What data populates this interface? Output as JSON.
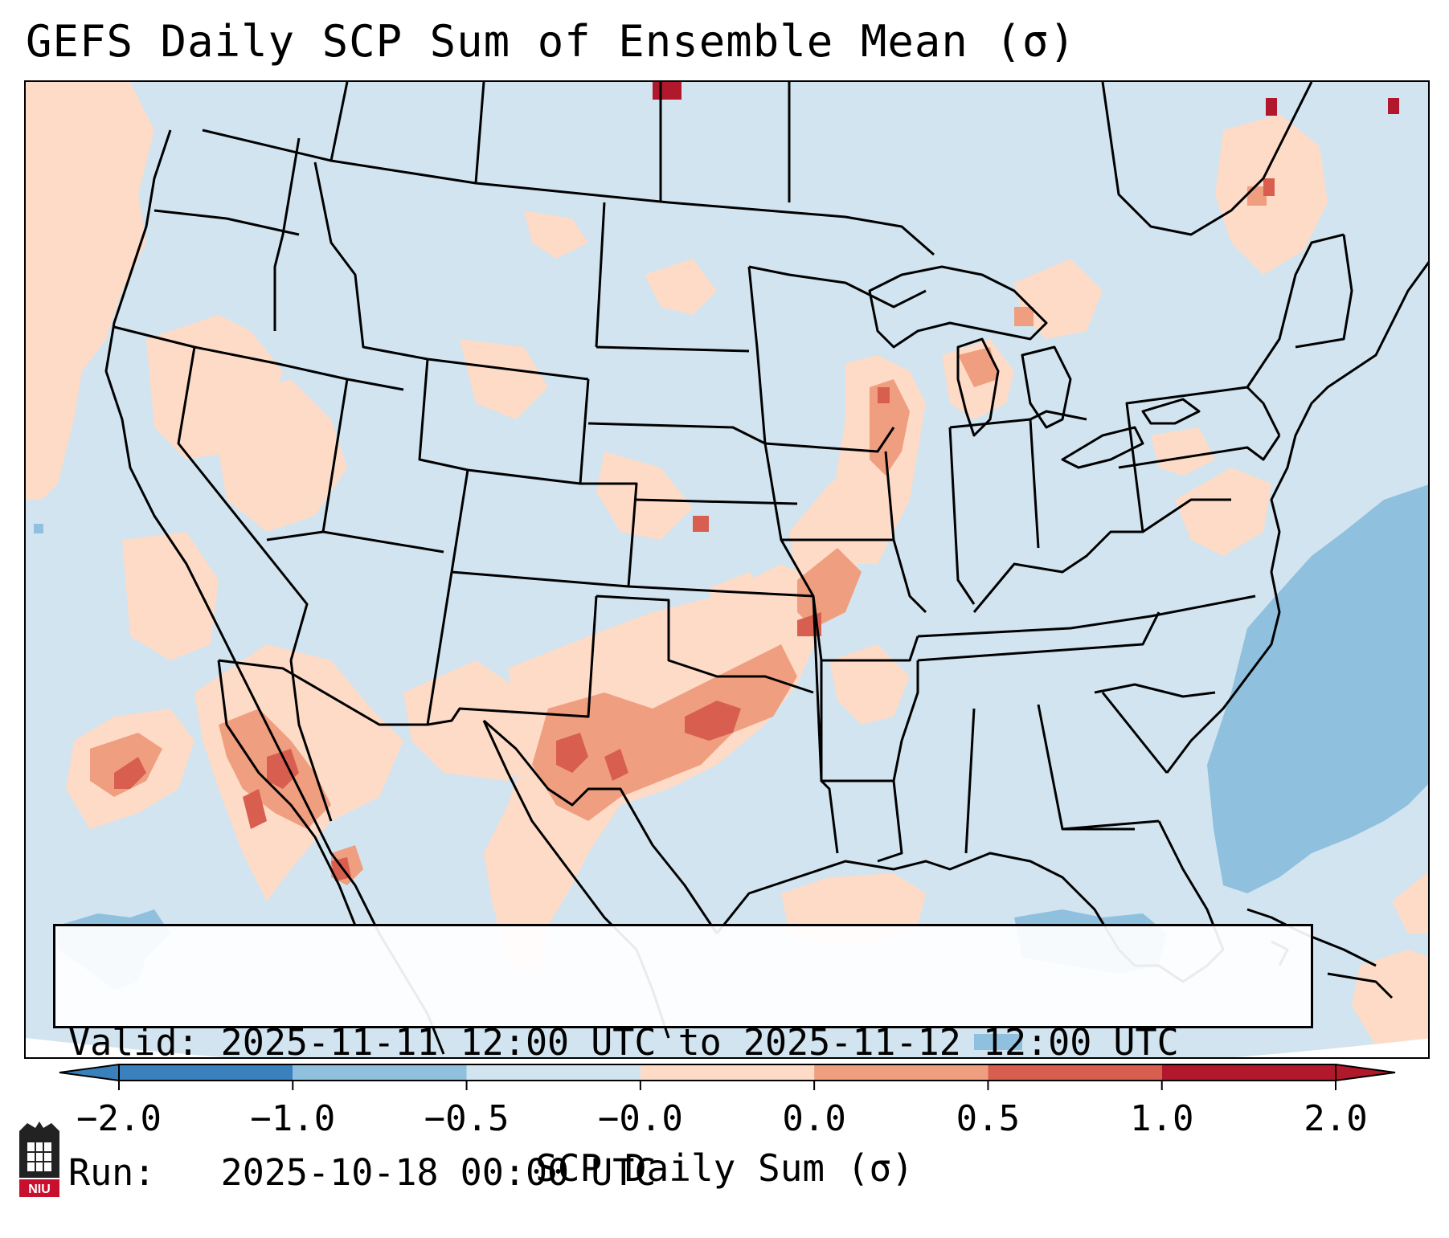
{
  "title": "GEFS Daily SCP Sum of Ensemble Mean (σ)",
  "info": {
    "valid_line": "Valid: 2025-11-11 12:00 UTC to 2025-11-12 12:00 UTC",
    "run_line": "Run:   2025-10-18 00:00 UTC"
  },
  "colorbar": {
    "label": "SCP Daily Sum (σ)",
    "ticks": [
      "−2.0",
      "−1.0",
      "−0.5",
      "−0.0",
      "0.0",
      "0.5",
      "1.0",
      "2.0"
    ],
    "colors": [
      "#3a80bc",
      "#8fc0de",
      "#d1e4f0",
      "#f8f8f8",
      "#fddbc7",
      "#ef9e80",
      "#d85f50",
      "#b2182b"
    ]
  },
  "logo": {
    "text": "NIU"
  },
  "colors": {
    "background_field": "#d1e4f0",
    "outside_domain": "#ffffff",
    "boundaries": "#000000"
  }
}
